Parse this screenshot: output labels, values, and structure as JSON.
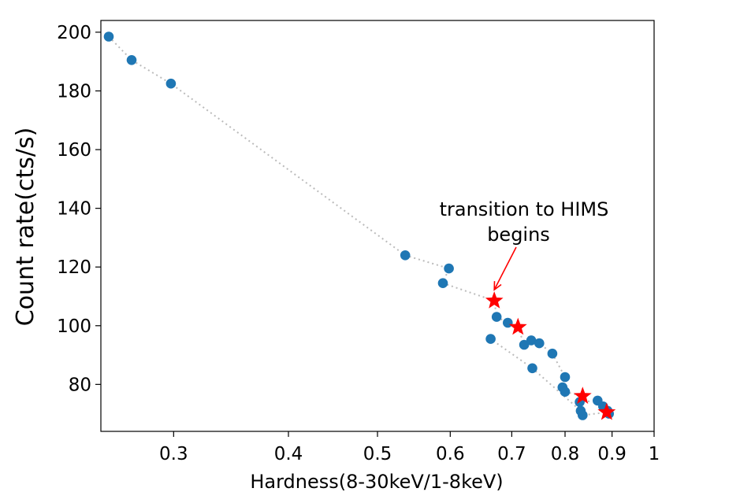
{
  "chart_data": {
    "type": "scatter",
    "title": "",
    "xlabel": "Hardness(8-30keV/1-8keV)",
    "ylabel": "Count rate(cts/s)",
    "xscale": "log",
    "xlim": [
      0.25,
      1.0
    ],
    "ylim": [
      64,
      204
    ],
    "xticks": [
      0.3,
      0.4,
      0.5,
      0.6,
      0.7,
      0.8,
      0.9,
      1
    ],
    "xtick_labels": [
      "0.3",
      "0.4",
      "0.5",
      "0.6",
      "0.7",
      "0.8",
      "0.9",
      "1"
    ],
    "yticks": [
      80,
      100,
      120,
      140,
      160,
      180,
      200
    ],
    "ytick_labels": [
      "80",
      "100",
      "120",
      "140",
      "160",
      "180",
      "200"
    ],
    "grid": false,
    "line_style": "dotted",
    "colors": {
      "points": "#1f77b4",
      "stars": "#ff0000",
      "line": "#bbbbbb",
      "arrow": "#ff0000"
    },
    "path": [
      [
        0.255,
        198.5
      ],
      [
        0.27,
        190.5
      ],
      [
        0.298,
        182.5
      ],
      [
        0.536,
        124.0
      ],
      [
        0.598,
        119.5
      ],
      [
        0.589,
        114.5
      ],
      [
        0.67,
        108.5
      ],
      [
        0.674,
        103.0
      ],
      [
        0.693,
        101.0
      ],
      [
        0.711,
        99.5
      ],
      [
        0.722,
        93.5
      ],
      [
        0.735,
        95.0
      ],
      [
        0.75,
        94.0
      ],
      [
        0.775,
        90.5
      ],
      [
        0.8,
        82.5
      ],
      [
        0.795,
        79.0
      ],
      [
        0.8,
        77.5
      ],
      [
        0.836,
        76.0
      ],
      [
        0.83,
        74.0
      ],
      [
        0.868,
        74.5
      ],
      [
        0.88,
        72.5
      ],
      [
        0.89,
        71.0
      ],
      [
        0.888,
        70.5
      ],
      [
        0.836,
        69.5
      ],
      [
        0.832,
        71.0
      ],
      [
        0.737,
        85.5
      ],
      [
        0.664,
        95.5
      ]
    ],
    "points": [
      [
        0.255,
        198.5
      ],
      [
        0.27,
        190.5
      ],
      [
        0.298,
        182.5
      ],
      [
        0.536,
        124.0
      ],
      [
        0.598,
        119.5
      ],
      [
        0.589,
        114.5
      ],
      [
        0.674,
        103.0
      ],
      [
        0.693,
        101.0
      ],
      [
        0.722,
        93.5
      ],
      [
        0.735,
        95.0
      ],
      [
        0.75,
        94.0
      ],
      [
        0.775,
        90.5
      ],
      [
        0.8,
        82.5
      ],
      [
        0.795,
        79.0
      ],
      [
        0.8,
        77.5
      ],
      [
        0.83,
        74.0
      ],
      [
        0.868,
        74.5
      ],
      [
        0.88,
        72.5
      ],
      [
        0.89,
        71.0
      ],
      [
        0.893,
        70.0
      ],
      [
        0.836,
        69.5
      ],
      [
        0.832,
        71.0
      ],
      [
        0.737,
        85.5
      ],
      [
        0.664,
        95.5
      ]
    ],
    "stars": [
      [
        0.67,
        108.5
      ],
      [
        0.711,
        99.5
      ],
      [
        0.836,
        76.0
      ],
      [
        0.888,
        70.5
      ]
    ],
    "annotation": {
      "lines": [
        "transition to HIMS",
        "begins"
      ],
      "arrow_to": [
        0.67,
        108.5
      ]
    }
  }
}
